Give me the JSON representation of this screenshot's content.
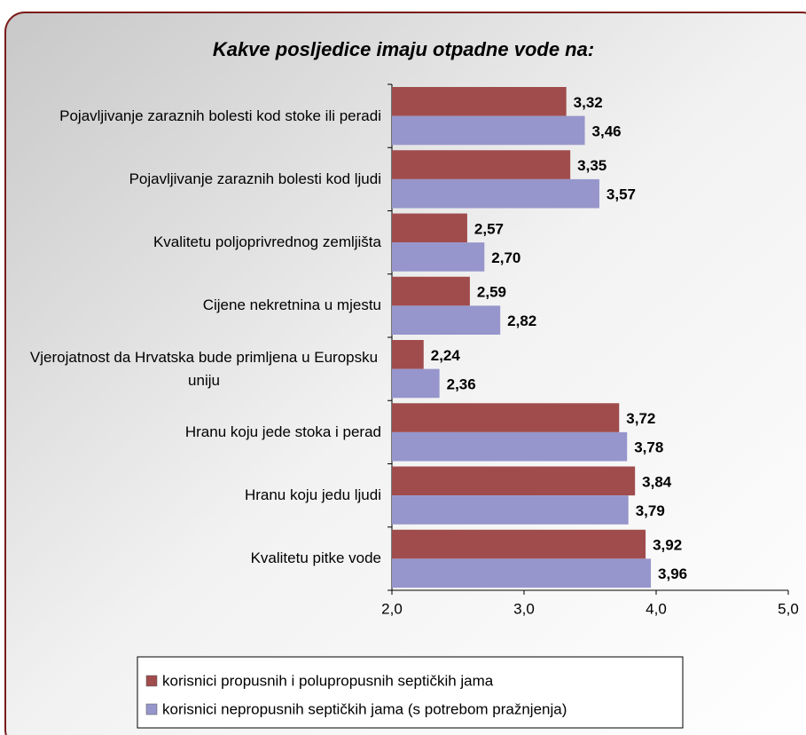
{
  "chart_data": {
    "type": "hbar",
    "title": "Kakve posljedice imaju otpadne vode na:",
    "categories": [
      "Pojavljivanje zaraznih bolesti kod stoke ili peradi",
      "Pojavljivanje zaraznih bolesti kod ljudi",
      "Kvalitetu poljoprivrednog zemljišta",
      "Cijene nekretnina u mjestu",
      "Vjerojatnost da Hrvatska bude primljena u Europsku uniju",
      "Hranu koju jede stoka i perad",
      "Hranu koju jedu ljudi",
      "Kvalitetu pitke vode"
    ],
    "series": [
      {
        "name": "korisnici propusnih i polupropusnih septičkih jama",
        "color": "#a04c4c",
        "values": [
          3.32,
          3.35,
          2.57,
          2.59,
          2.24,
          3.72,
          3.84,
          3.92
        ],
        "value_labels": [
          "3,32",
          "3,35",
          "2,57",
          "2,59",
          "2,24",
          "3,72",
          "3,84",
          "3,92"
        ]
      },
      {
        "name": "korisnici nepropusnih septičkih jama (s potrebom pražnjenja)",
        "color": "#9696cc",
        "values": [
          3.46,
          3.57,
          2.7,
          2.82,
          2.36,
          3.78,
          3.79,
          3.96
        ],
        "value_labels": [
          "3,46",
          "3,57",
          "2,70",
          "2,82",
          "2,36",
          "3,78",
          "3,79",
          "3,96"
        ]
      }
    ],
    "xlim": [
      2,
      5
    ],
    "xticks": [
      {
        "value": 2,
        "label": "2,0"
      },
      {
        "value": 3,
        "label": "3,0"
      },
      {
        "value": 4,
        "label": "4,0"
      },
      {
        "value": 5,
        "label": "5,0"
      }
    ]
  }
}
